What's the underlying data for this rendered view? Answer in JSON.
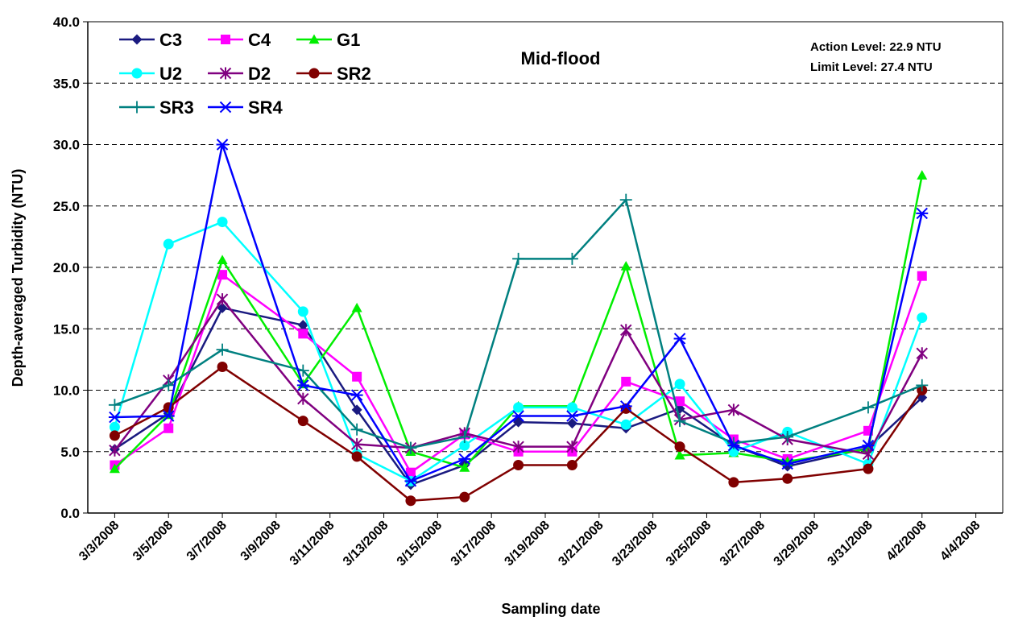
{
  "chart_data": {
    "type": "line",
    "title": "Mid-flood",
    "annotations": [
      "Action Level: 22.9 NTU",
      "Limit Level: 27.4 NTU"
    ],
    "xlabel": "Sampling date",
    "ylabel": "Depth-averaged Turbidity (NTU)",
    "ylim": [
      0,
      40
    ],
    "y_ticks": [
      "0.0",
      "5.0",
      "10.0",
      "15.0",
      "20.0",
      "25.0",
      "30.0",
      "35.0",
      "40.0"
    ],
    "x_range": [
      "3/2/2008",
      "4/5/2008"
    ],
    "x_ticks": [
      "3/3/2008",
      "3/5/2008",
      "3/7/2008",
      "3/9/2008",
      "3/11/2008",
      "3/13/2008",
      "3/15/2008",
      "3/17/2008",
      "3/19/2008",
      "3/21/2008",
      "3/23/2008",
      "3/25/2008",
      "3/27/2008",
      "3/29/2008",
      "3/31/2008",
      "4/2/2008",
      "4/4/2008"
    ],
    "x_dates": [
      "3/3/2008",
      "3/5/2008",
      "3/7/2008",
      "3/10/2008",
      "3/12/2008",
      "3/14/2008",
      "3/16/2008",
      "3/18/2008",
      "3/20/2008",
      "3/22/2008",
      "3/24/2008",
      "3/26/2008",
      "3/28/2008",
      "3/31/2008",
      "4/2/2008",
      "4/4/2008"
    ],
    "grid": "horizontal dashed",
    "legend_position": "top-left",
    "series": [
      {
        "name": "C3",
        "color": "#1a1a80",
        "marker": "diamond",
        "values": [
          5.2,
          8.1,
          16.7,
          15.3,
          8.4,
          2.3,
          3.9,
          7.4,
          7.3,
          6.9,
          8.5,
          5.5,
          3.8,
          5.3,
          9.4,
          null
        ]
      },
      {
        "name": "C4",
        "color": "#ff00ff",
        "marker": "square",
        "values": [
          3.9,
          6.9,
          19.4,
          14.6,
          11.1,
          3.3,
          6.4,
          5.0,
          5.0,
          10.7,
          9.1,
          6.0,
          4.4,
          6.7,
          19.3,
          null
        ]
      },
      {
        "name": "G1",
        "color": "#00ee00",
        "marker": "triangle",
        "values": [
          3.6,
          8.0,
          20.6,
          10.5,
          16.7,
          5.0,
          3.7,
          8.7,
          8.7,
          20.1,
          4.7,
          4.9,
          4.2,
          5.2,
          27.5,
          null
        ]
      },
      {
        "name": "U2",
        "color": "#00ffff",
        "marker": "circle",
        "values": [
          7.0,
          21.9,
          23.7,
          16.4,
          4.8,
          2.6,
          5.5,
          8.6,
          8.6,
          7.2,
          10.5,
          5.0,
          6.6,
          4.0,
          15.9,
          null
        ]
      },
      {
        "name": "D2",
        "color": "#800080",
        "marker": "star",
        "values": [
          5.1,
          10.8,
          17.4,
          9.3,
          5.6,
          5.3,
          6.5,
          5.4,
          5.4,
          14.9,
          7.6,
          8.4,
          6.0,
          4.8,
          13.0,
          null
        ]
      },
      {
        "name": "SR2",
        "color": "#800000",
        "marker": "circle",
        "values": [
          6.3,
          8.6,
          11.9,
          7.5,
          4.6,
          1.0,
          1.3,
          3.9,
          3.9,
          8.5,
          5.4,
          2.5,
          2.8,
          3.6,
          10.0,
          null
        ]
      },
      {
        "name": "SR3",
        "color": "#008080",
        "marker": "plus",
        "values": [
          8.8,
          10.4,
          13.3,
          11.6,
          6.8,
          5.3,
          6.2,
          20.7,
          20.7,
          25.5,
          7.5,
          5.7,
          6.2,
          8.6,
          10.4,
          null
        ]
      },
      {
        "name": "SR4",
        "color": "#0000ff",
        "marker": "asterisk",
        "values": [
          7.8,
          7.9,
          30.0,
          10.4,
          9.6,
          2.6,
          4.4,
          7.9,
          7.9,
          8.7,
          14.2,
          5.5,
          4.0,
          5.5,
          24.4,
          null
        ]
      }
    ]
  }
}
